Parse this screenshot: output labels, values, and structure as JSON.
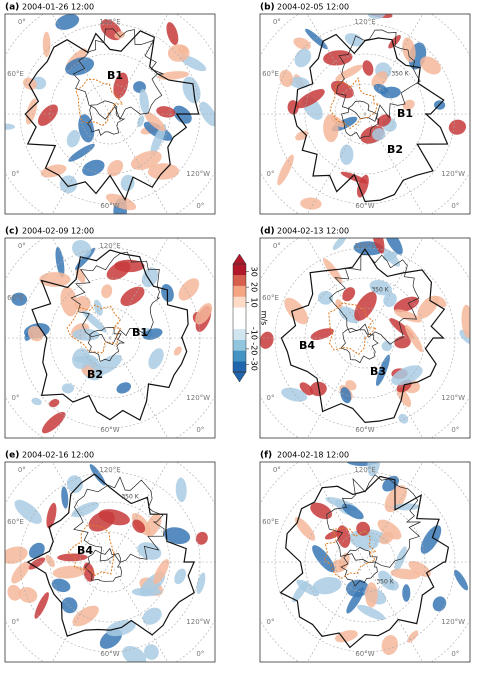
{
  "panels": [
    {
      "label": "(a)",
      "time": "2004-01-26 12:00",
      "geo_labels": [
        "0°",
        "120°E",
        "60°E",
        "0°",
        "60°W",
        "0°",
        "120°W"
      ],
      "annotations": [
        "B1"
      ],
      "contour_labels": []
    },
    {
      "label": "(b)",
      "time": "2004-02-05 12:00",
      "geo_labels": [
        "0°",
        "120°E",
        "60°E",
        "0°",
        "60°W",
        "0°",
        "120°W"
      ],
      "annotations": [
        "B1",
        "B2"
      ],
      "contour_labels": [
        "350 K"
      ]
    },
    {
      "label": "(c)",
      "time": "2004-02-09 12:00",
      "geo_labels": [
        "0°",
        "120°E",
        "60°E",
        "0°",
        "60°W",
        "0°",
        "120°W"
      ],
      "annotations": [
        "B1",
        "B2"
      ],
      "contour_labels": []
    },
    {
      "label": "(d)",
      "time": "2004-02-13 12:00",
      "geo_labels": [
        "0°",
        "120°E",
        "60°E",
        "0°",
        "60°W",
        "0°",
        "120°W"
      ],
      "annotations": [
        "B4",
        "B3"
      ],
      "contour_labels": [
        "350 K"
      ]
    },
    {
      "label": "(e)",
      "time": "2004-02-16 12:00",
      "geo_labels": [
        "0°",
        "120°E",
        "60°E",
        "0°",
        "60°W",
        "0°",
        "120°W"
      ],
      "annotations": [
        "B4"
      ],
      "contour_labels": [
        "350 K"
      ]
    },
    {
      "label": "(f)",
      "time": "2004-02-18 12:00",
      "geo_labels": [
        "0°",
        "120°E",
        "60°E",
        "0°",
        "60°W",
        "0°",
        "120°W"
      ],
      "annotations": [],
      "contour_labels": [
        "350 K"
      ]
    }
  ],
  "colorbar": {
    "lim": [
      -35,
      35
    ],
    "ticks": [
      30,
      20,
      10,
      -10,
      -20,
      -30
    ],
    "unit": "m/s",
    "extend": "both",
    "colors": [
      "#2166ac",
      "#4393c3",
      "#92c5de",
      "#d1e5f0",
      "#ffffff",
      "#ffffff",
      "#fddbc7",
      "#f4a582",
      "#d6604d",
      "#b2182b"
    ]
  }
}
